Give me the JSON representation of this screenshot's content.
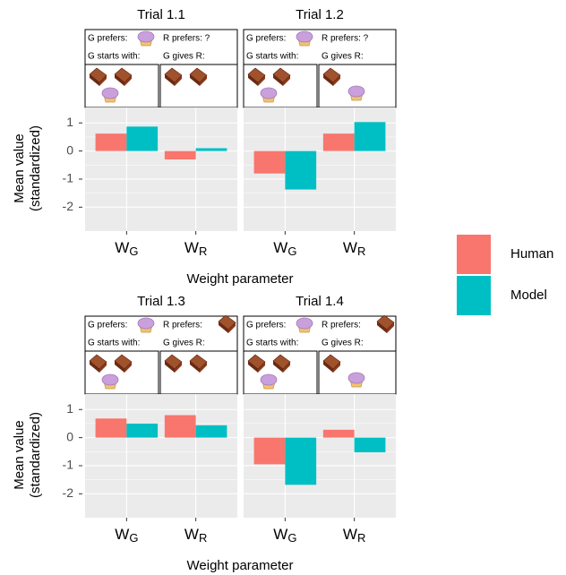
{
  "chart_data": [
    {
      "type": "bar",
      "title": "Trial 1.1",
      "scenario": {
        "g_prefers": "G prefers:",
        "r_prefers": "R prefers: ?",
        "g_starts": "G starts with:",
        "g_gives": "G gives R:"
      },
      "categories": [
        [
          "W",
          "G"
        ],
        [
          "W",
          "R"
        ]
      ],
      "series": [
        {
          "name": "Human",
          "color": "#F8766D",
          "values": [
            0.62,
            -0.3
          ]
        },
        {
          "name": "Model",
          "color": "#00BFC4",
          "values": [
            0.87,
            0.1
          ]
        }
      ],
      "ylim": [
        -2.85,
        1.55
      ],
      "yticks": [
        -2,
        -1,
        0,
        1
      ],
      "grid": true,
      "y_label": [
        "Mean value",
        "(standardized)"
      ],
      "x_label": "Weight parameter"
    },
    {
      "type": "bar",
      "title": "Trial 1.2",
      "scenario": {
        "g_prefers": "G prefers:",
        "r_prefers": "R prefers: ?",
        "g_starts": "G starts with:",
        "g_gives": "G gives R:"
      },
      "categories": [
        [
          "W",
          "G"
        ],
        [
          "W",
          "R"
        ]
      ],
      "series": [
        {
          "name": "Human",
          "color": "#F8766D",
          "values": [
            -0.8,
            0.62
          ]
        },
        {
          "name": "Model",
          "color": "#00BFC4",
          "values": [
            -1.37,
            1.03
          ]
        }
      ],
      "ylim": [
        -2.85,
        1.55
      ],
      "yticks": [
        -2,
        -1,
        0,
        1
      ],
      "grid": true
    },
    {
      "type": "bar",
      "title": "Trial 1.3",
      "scenario": {
        "g_prefers": "G prefers:",
        "r_prefers": "R prefers:",
        "g_starts": "G starts with:",
        "g_gives": "G gives R:"
      },
      "categories": [
        [
          "W",
          "G"
        ],
        [
          "W",
          "R"
        ]
      ],
      "series": [
        {
          "name": "Human",
          "color": "#F8766D",
          "values": [
            0.68,
            0.8
          ]
        },
        {
          "name": "Model",
          "color": "#00BFC4",
          "values": [
            0.5,
            0.44
          ]
        }
      ],
      "ylim": [
        -2.85,
        1.55
      ],
      "yticks": [
        -2,
        -1,
        0,
        1
      ],
      "grid": true,
      "y_label": [
        "Mean value",
        "(standardized)"
      ],
      "x_label": "Weight parameter"
    },
    {
      "type": "bar",
      "title": "Trial 1.4",
      "scenario": {
        "g_prefers": "G prefers:",
        "r_prefers": "R prefers:",
        "g_starts": "G starts with:",
        "g_gives": "G gives R:"
      },
      "categories": [
        [
          "W",
          "G"
        ],
        [
          "W",
          "R"
        ]
      ],
      "series": [
        {
          "name": "Human",
          "color": "#F8766D",
          "values": [
            -0.95,
            0.28
          ]
        },
        {
          "name": "Model",
          "color": "#00BFC4",
          "values": [
            -1.68,
            -0.52
          ]
        }
      ],
      "ylim": [
        -2.85,
        1.55
      ],
      "yticks": [
        -2,
        -1,
        0,
        1
      ],
      "grid": true
    }
  ]
}
